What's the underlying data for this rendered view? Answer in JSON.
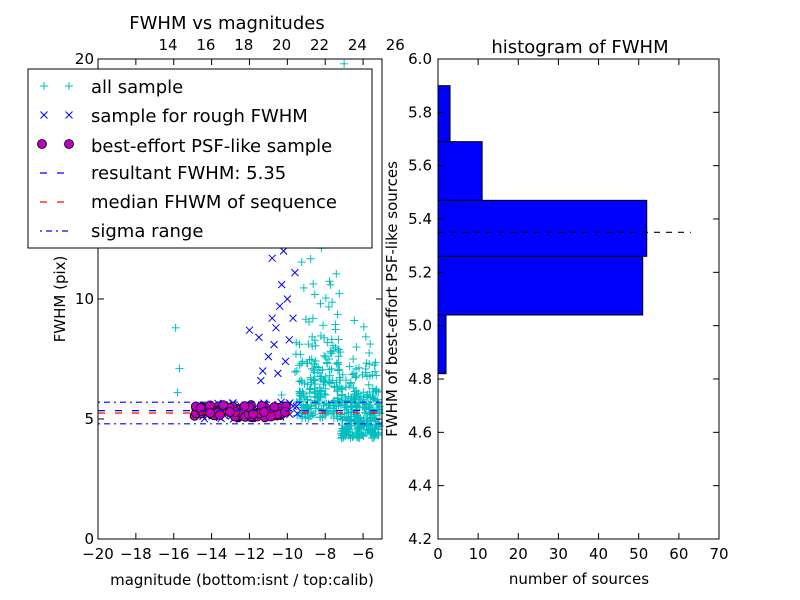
{
  "chart_data": [
    {
      "type": "scatter",
      "title": "FWHM vs magnitudes",
      "xlabel": "magnitude (bottom:isnt / top:calib)",
      "ylabel": "FWHM (pix)",
      "xlim": [
        -20,
        -5
      ],
      "ylim": [
        0,
        20
      ],
      "x_ticks": [
        -20,
        -18,
        -16,
        -14,
        -12,
        -10,
        -8,
        -6
      ],
      "x_tick_labels": [
        "−20",
        "−18",
        "−16",
        "−14",
        "−12",
        "−10",
        "−8",
        "−6"
      ],
      "y_ticks": [
        0,
        5,
        10,
        20
      ],
      "y_tick_labels": [
        "0",
        "5",
        "10",
        "20"
      ],
      "top_x_ticks": [
        14,
        16,
        18,
        20,
        22,
        24,
        26
      ],
      "top_x_offset": 30.3,
      "grid": false,
      "legend_placement": "upper-left",
      "series": [
        {
          "name": "all sample",
          "marker": "+",
          "color": "#00bfbf"
        },
        {
          "name": "sample for rough FWHM",
          "marker": "x",
          "color": "#0000ff"
        },
        {
          "name": "best-effort PSF-like sample",
          "marker": "o",
          "color": "#bf00bf"
        }
      ],
      "lines": [
        {
          "name": "resultant FWHM: 5.35",
          "style": "dashed",
          "color": "#0000ff",
          "y": 5.35
        },
        {
          "name": "median FHWM of sequence",
          "style": "dashed",
          "color": "#ff0000",
          "y": 5.25
        },
        {
          "name": "sigma range",
          "style": "dashdot",
          "color": "#0000ff",
          "y": [
            4.8,
            5.7
          ]
        }
      ]
    },
    {
      "type": "bar",
      "orientation": "horizontal",
      "title": "histogram of FWHM",
      "xlabel": "number of sources",
      "ylabel": "FWHM of best-effort PSF-like sources",
      "xlim": [
        0,
        70
      ],
      "ylim": [
        4.2,
        6.0
      ],
      "x_ticks": [
        0,
        10,
        20,
        30,
        40,
        50,
        60,
        70
      ],
      "y_ticks": [
        4.2,
        4.4,
        4.6,
        4.8,
        5.0,
        5.2,
        5.4,
        5.6,
        5.8,
        6.0
      ],
      "y_tick_labels": [
        "4.2",
        "4.4",
        "4.6",
        "4.8",
        "5.0",
        "5.2",
        "5.4",
        "5.6",
        "5.8",
        "6.0"
      ],
      "bar_color": "#0000ff",
      "bins": [
        {
          "y0": 4.82,
          "y1": 5.04,
          "count": 2
        },
        {
          "y0": 5.04,
          "y1": 5.26,
          "count": 51
        },
        {
          "y0": 5.26,
          "y1": 5.47,
          "count": 52
        },
        {
          "y0": 5.47,
          "y1": 5.69,
          "count": 11
        },
        {
          "y0": 5.69,
          "y1": 5.9,
          "count": 3
        }
      ],
      "reference_line": {
        "y": 5.35,
        "style": "dashed",
        "color": "#000000",
        "x_end": 63
      }
    }
  ]
}
